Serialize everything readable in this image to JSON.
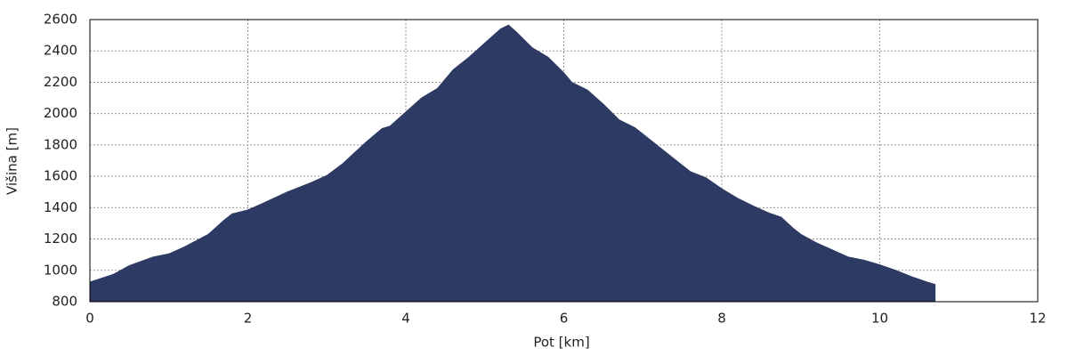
{
  "chart_data": {
    "type": "area",
    "color": "#2d3a63",
    "grid": true,
    "x_label": "Pot [km]",
    "y_label": "Višina [m]",
    "xlim": [
      0,
      12
    ],
    "xticks": [
      0,
      2,
      4,
      6,
      8,
      10,
      12
    ],
    "ylim": [
      800,
      2600
    ],
    "yticks": [
      800,
      1000,
      1200,
      1400,
      1600,
      1800,
      2000,
      2200,
      2400,
      2600
    ],
    "x": [
      0,
      0.3,
      0.5,
      0.8,
      1.0,
      1.2,
      1.5,
      1.7,
      1.8,
      2.0,
      2.2,
      2.5,
      2.8,
      3.0,
      3.2,
      3.5,
      3.7,
      3.8,
      4.0,
      4.2,
      4.4,
      4.6,
      4.8,
      5.0,
      5.2,
      5.3,
      5.4,
      5.6,
      5.8,
      6.0,
      6.1,
      6.3,
      6.5,
      6.7,
      6.9,
      7.0,
      7.2,
      7.4,
      7.6,
      7.8,
      8.0,
      8.2,
      8.4,
      8.6,
      8.75,
      8.9,
      9.0,
      9.2,
      9.4,
      9.6,
      9.8,
      10.0,
      10.2,
      10.4,
      10.6,
      10.7
    ],
    "values": [
      925,
      975,
      1030,
      1085,
      1105,
      1150,
      1230,
      1320,
      1360,
      1385,
      1430,
      1500,
      1560,
      1605,
      1680,
      1820,
      1905,
      1920,
      2010,
      2100,
      2160,
      2280,
      2360,
      2450,
      2540,
      2565,
      2520,
      2420,
      2360,
      2260,
      2200,
      2150,
      2060,
      1960,
      1910,
      1870,
      1790,
      1710,
      1630,
      1590,
      1520,
      1460,
      1410,
      1365,
      1340,
      1270,
      1230,
      1175,
      1130,
      1085,
      1065,
      1035,
      1000,
      960,
      925,
      910
    ]
  }
}
